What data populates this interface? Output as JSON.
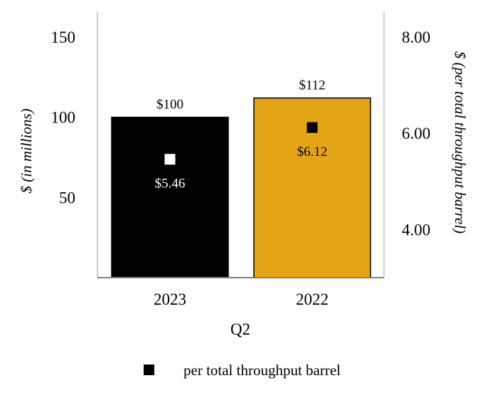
{
  "chart_data": {
    "type": "bar",
    "categories": [
      "2023",
      "2022"
    ],
    "xlabel": "Q2",
    "series": [
      {
        "values": [
          100,
          112
        ],
        "value_labels": [
          "$100",
          "$112"
        ],
        "colors": [
          "#000000",
          "#E4A515"
        ],
        "axis": "left"
      },
      {
        "name": "per total throughput barrel",
        "type": "scatter",
        "values": [
          5.46,
          6.12
        ],
        "value_labels": [
          "$5.46",
          "$6.12"
        ],
        "marker_colors": [
          "#ffffff",
          "#000000"
        ],
        "label_colors": [
          "#ffffff",
          "#000000"
        ],
        "axis": "right"
      }
    ],
    "y_left": {
      "label": "$ (in millions)",
      "ticks": [
        50,
        100,
        150
      ],
      "tick_labels": [
        "50",
        "100",
        "150"
      ],
      "range": [
        0,
        150
      ]
    },
    "y_right": {
      "label": "$ (per total throughput barrel)",
      "ticks": [
        4.0,
        6.0,
        8.0
      ],
      "tick_labels": [
        "4.00",
        "6.00",
        "8.00"
      ],
      "range": [
        3.0,
        8.0
      ]
    },
    "legend": {
      "placement": "bottom",
      "entries": [
        "per total throughput barrel"
      ]
    },
    "grid": false
  }
}
